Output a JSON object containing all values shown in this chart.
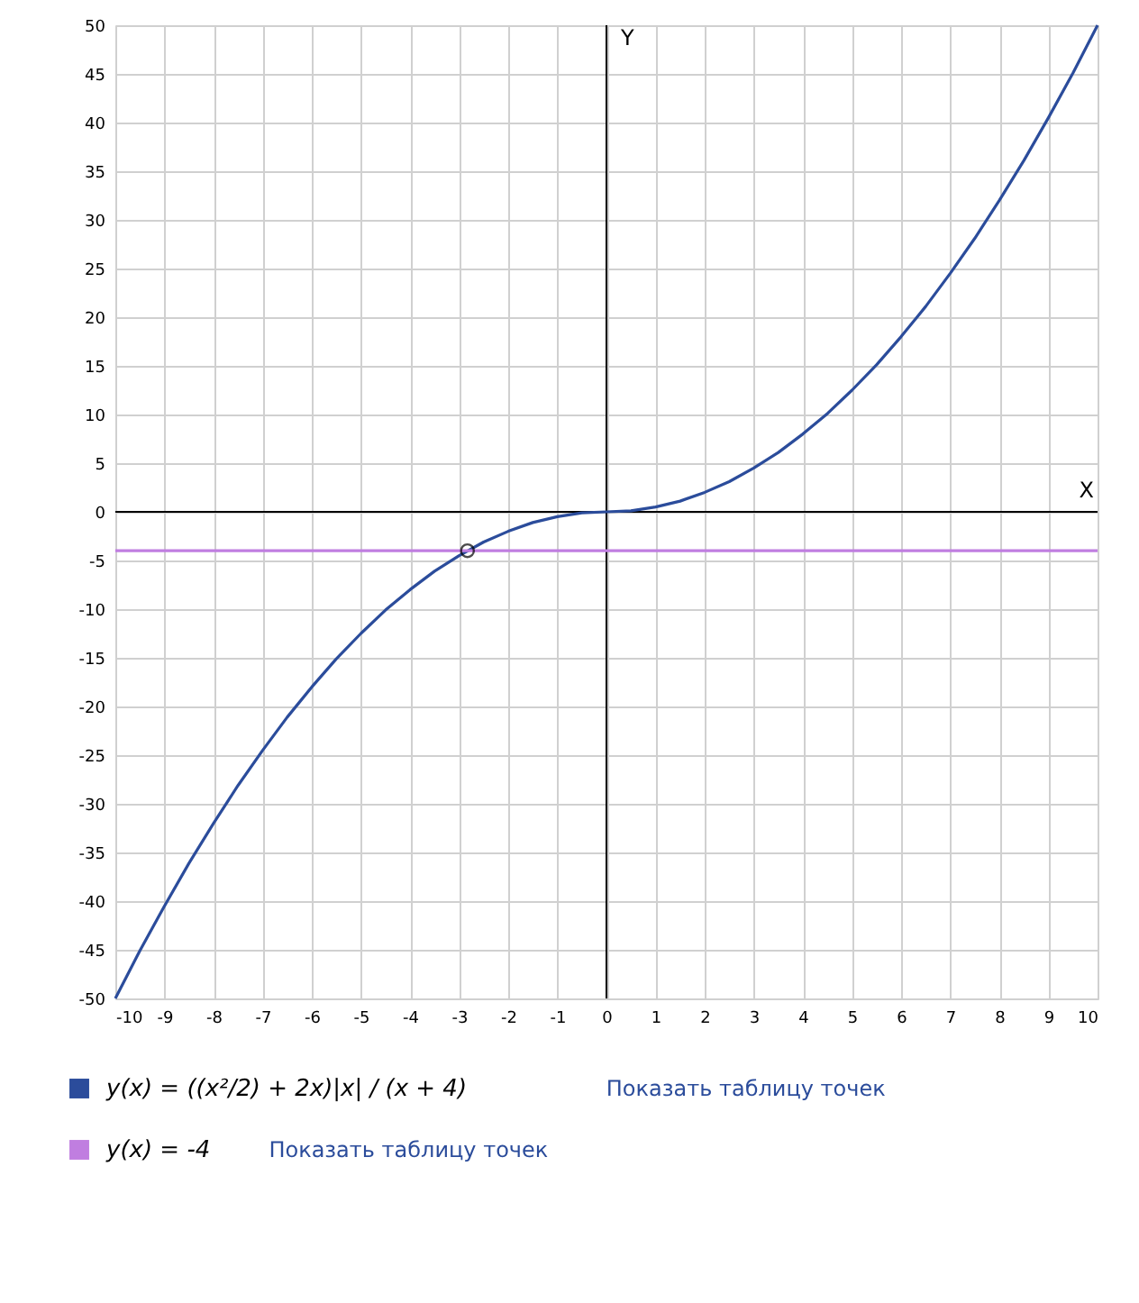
{
  "chart_data": {
    "type": "line",
    "xlim": [
      -10,
      10
    ],
    "ylim": [
      -50,
      50
    ],
    "xticks": [
      -10,
      -9,
      -8,
      -7,
      -6,
      -5,
      -4,
      -3,
      -2,
      -1,
      0,
      1,
      2,
      3,
      4,
      5,
      6,
      7,
      8,
      9,
      10
    ],
    "yticks": [
      -50,
      -45,
      -40,
      -35,
      -30,
      -25,
      -20,
      -15,
      -10,
      -5,
      0,
      5,
      10,
      15,
      20,
      25,
      30,
      35,
      40,
      45,
      50
    ],
    "grid": true,
    "legend": "bottom",
    "marker": "none",
    "line_style": "solid",
    "series": [
      {
        "name": "y(x) = ((x²/2) + 2x)|x| / (x + 4)",
        "color": "#2b4c9b",
        "x": [
          -10,
          -9.5,
          -9,
          -8.5,
          -8,
          -7.5,
          -7,
          -6.5,
          -6,
          -5.5,
          -5,
          -4.5,
          -4,
          -3.5,
          -3,
          -2.5,
          -2,
          -1.5,
          -1,
          -0.5,
          0,
          0.5,
          1,
          1.5,
          2,
          2.5,
          3,
          3.5,
          4,
          4.5,
          5,
          5.5,
          6,
          6.5,
          7,
          7.5,
          8,
          8.5,
          9,
          9.5,
          10
        ],
        "values": [
          -50,
          -45.1,
          -40.5,
          -36.1,
          -32,
          -28.1,
          -24.5,
          -21.1,
          -18,
          -15.1,
          -12.5,
          -10.1,
          -8,
          -6.1,
          -4.5,
          -3.1,
          -2,
          -1.1,
          -0.5,
          -0.1,
          0,
          0.1,
          0.5,
          1.1,
          2,
          3.1,
          4.5,
          6.1,
          8,
          10.1,
          12.5,
          15.1,
          18,
          21.1,
          24.5,
          28.1,
          32,
          36.1,
          40.5,
          45.1,
          50
        ]
      },
      {
        "name": "y(x) = -4",
        "color": "#c07ee0",
        "x": [
          -10,
          10
        ],
        "values": [
          -4,
          -4
        ]
      },
      {
        "type": "scatter",
        "marker": "circle",
        "color": "#000000",
        "x": [
          -2.83
        ],
        "values": [
          -4
        ]
      }
    ],
    "ref_lines": [
      {
        "axis": "x",
        "value": 0,
        "label": "Y",
        "color": "#000000"
      },
      {
        "axis": "y",
        "value": 0,
        "label": "X",
        "color": "#000000"
      }
    ],
    "annotations": [
      "Показать таблицу точек",
      "Показать таблицу точек"
    ]
  }
}
